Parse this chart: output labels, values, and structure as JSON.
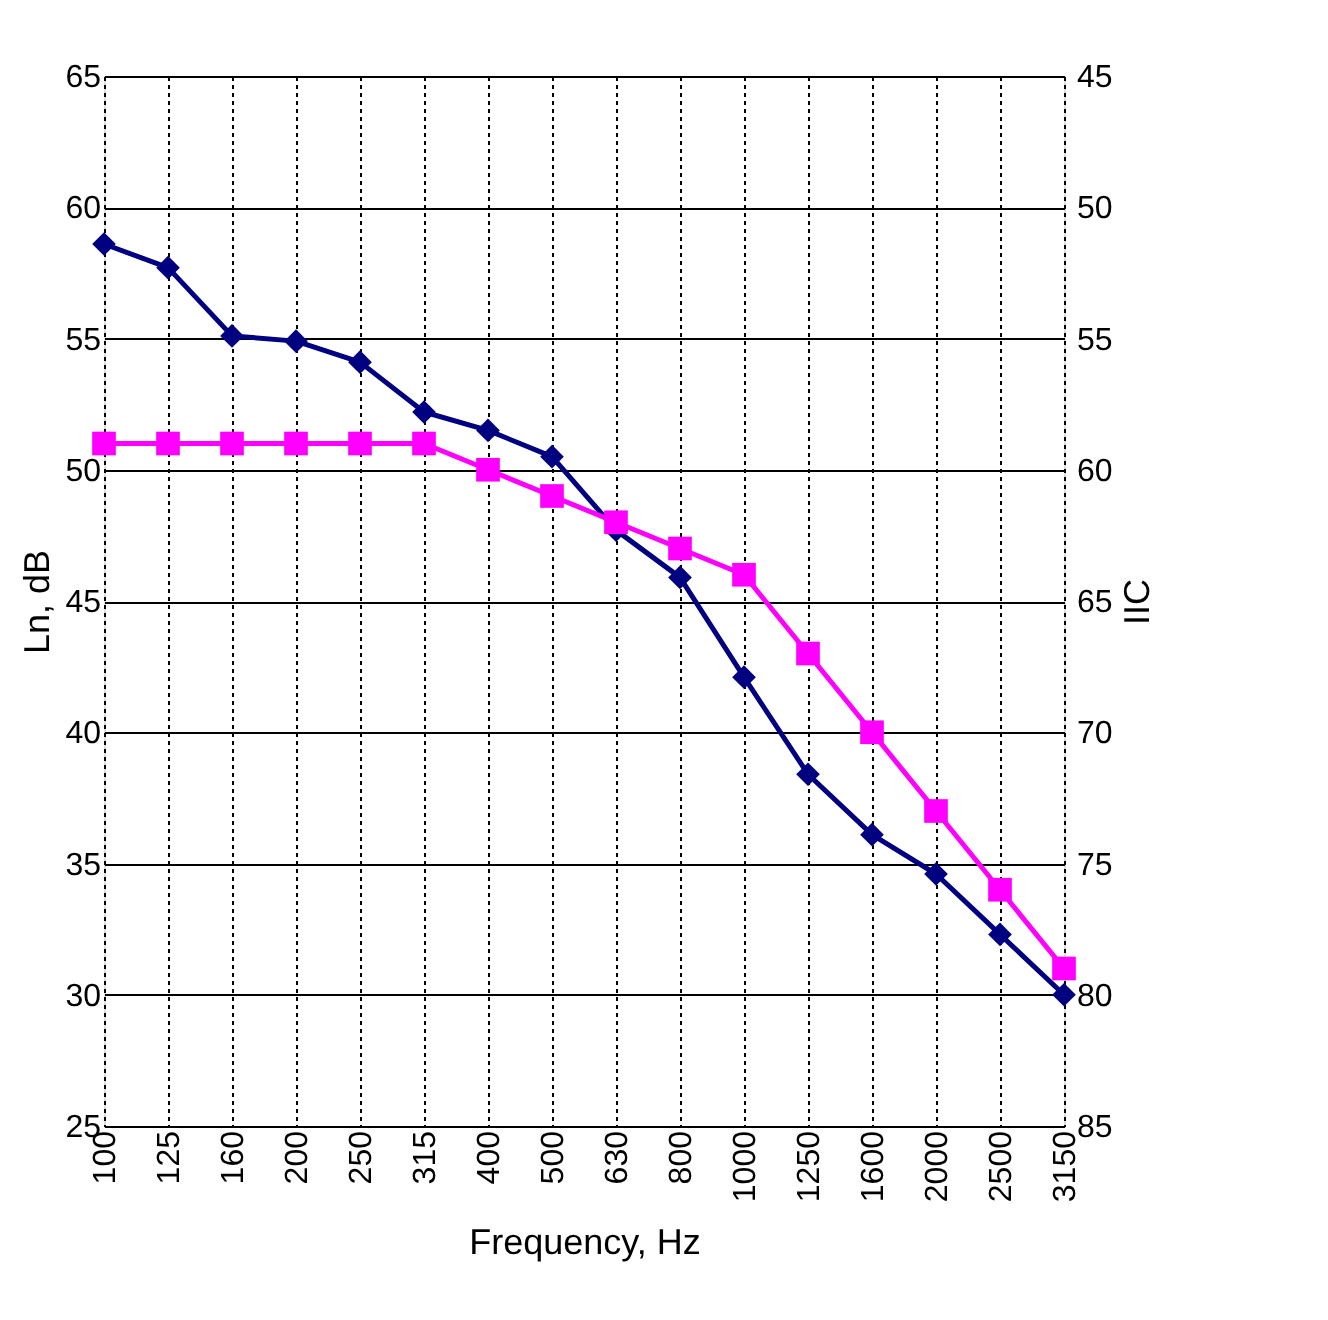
{
  "chart_data": {
    "type": "line",
    "xlabel": "Frequency, Hz",
    "ylabel": "Ln, dB",
    "y2label": "IIC",
    "categories": [
      "100",
      "125",
      "160",
      "200",
      "250",
      "315",
      "400",
      "500",
      "630",
      "800",
      "1000",
      "1250",
      "1600",
      "2000",
      "2500",
      "3150"
    ],
    "series": [
      {
        "color": "#000080",
        "marker": "diamond",
        "values": [
          58.6,
          57.7,
          55.1,
          54.9,
          54.1,
          52.2,
          51.5,
          50.5,
          47.7,
          45.9,
          42.1,
          38.4,
          36.1,
          34.6,
          32.3,
          30
        ]
      },
      {
        "color": "#ff00ff",
        "marker": "square",
        "values": [
          51,
          51,
          51,
          51,
          51,
          51,
          50,
          49,
          48,
          47,
          46,
          43,
          40,
          37,
          34,
          31
        ]
      }
    ],
    "ylim": [
      25,
      65
    ],
    "yticks": [
      25,
      30,
      35,
      40,
      45,
      50,
      55,
      60,
      65
    ],
    "y2lim": [
      85,
      45
    ],
    "y2ticks": [
      45,
      50,
      55,
      60,
      65,
      70,
      75,
      80,
      85
    ],
    "grid": true,
    "line_style": "solid"
  }
}
